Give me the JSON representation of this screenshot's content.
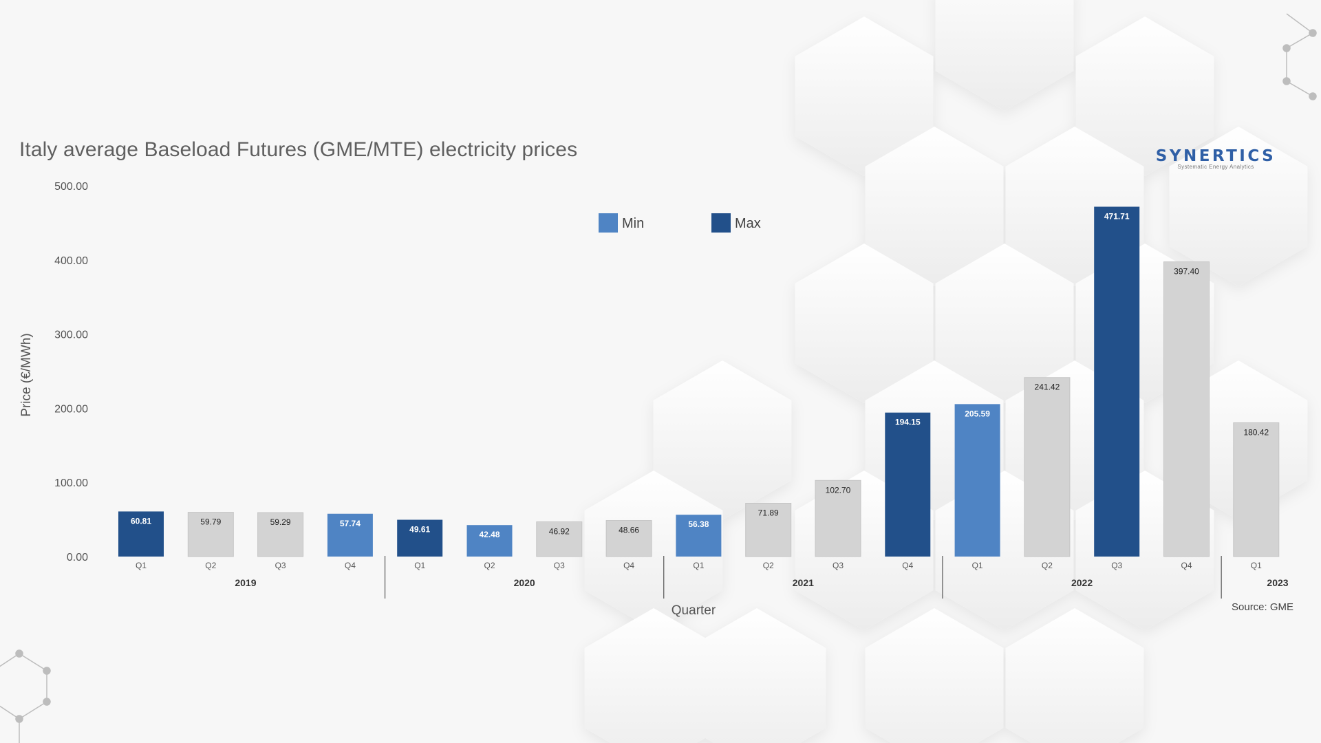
{
  "title": "Italy average Baseload Futures (GME/MTE) electricity prices",
  "brand": {
    "name": "SYNERTICS",
    "tagline": "Systematic Energy Analytics"
  },
  "source": "Source: GME",
  "colors": {
    "min": "#4f84c4",
    "max": "#22508a",
    "other": "#d3d3d3",
    "background": "#f7f7f7"
  },
  "chart_data": {
    "type": "bar",
    "ylabel": "Price (€/MWh)",
    "xlabel": "Quarter",
    "ylim": [
      0,
      500
    ],
    "yticks": [
      "0.00",
      "100.00",
      "200.00",
      "300.00",
      "400.00",
      "500.00"
    ],
    "legend": [
      {
        "name": "Min",
        "color": "#4f84c4"
      },
      {
        "name": "Max",
        "color": "#22508a"
      }
    ],
    "legend_position": "top-center",
    "grid": false,
    "years": [
      {
        "label": "2019",
        "quarters": 4
      },
      {
        "label": "2020",
        "quarters": 4
      },
      {
        "label": "2021",
        "quarters": 4
      },
      {
        "label": "2022",
        "quarters": 4
      },
      {
        "label": "2023",
        "quarters": 1
      }
    ],
    "bars": [
      {
        "year": "2019",
        "quarter": "Q1",
        "value": 60.81,
        "label": "60.81",
        "kind": "max"
      },
      {
        "year": "2019",
        "quarter": "Q2",
        "value": 59.79,
        "label": "59.79",
        "kind": "other"
      },
      {
        "year": "2019",
        "quarter": "Q3",
        "value": 59.29,
        "label": "59.29",
        "kind": "other"
      },
      {
        "year": "2019",
        "quarter": "Q4",
        "value": 57.74,
        "label": "57.74",
        "kind": "min"
      },
      {
        "year": "2020",
        "quarter": "Q1",
        "value": 49.61,
        "label": "49.61",
        "kind": "max"
      },
      {
        "year": "2020",
        "quarter": "Q2",
        "value": 42.48,
        "label": "42.48",
        "kind": "min"
      },
      {
        "year": "2020",
        "quarter": "Q3",
        "value": 46.92,
        "label": "46.92",
        "kind": "other"
      },
      {
        "year": "2020",
        "quarter": "Q4",
        "value": 48.66,
        "label": "48.66",
        "kind": "other"
      },
      {
        "year": "2021",
        "quarter": "Q1",
        "value": 56.38,
        "label": "56.38",
        "kind": "min"
      },
      {
        "year": "2021",
        "quarter": "Q2",
        "value": 71.89,
        "label": "71.89",
        "kind": "other"
      },
      {
        "year": "2021",
        "quarter": "Q3",
        "value": 102.7,
        "label": "102.70",
        "kind": "other"
      },
      {
        "year": "2021",
        "quarter": "Q4",
        "value": 194.15,
        "label": "194.15",
        "kind": "max"
      },
      {
        "year": "2022",
        "quarter": "Q1",
        "value": 205.59,
        "label": "205.59",
        "kind": "min"
      },
      {
        "year": "2022",
        "quarter": "Q2",
        "value": 241.42,
        "label": "241.42",
        "kind": "other"
      },
      {
        "year": "2022",
        "quarter": "Q3",
        "value": 471.71,
        "label": "471.71",
        "kind": "max"
      },
      {
        "year": "2022",
        "quarter": "Q4",
        "value": 397.4,
        "label": "397.40",
        "kind": "other"
      },
      {
        "year": "2023",
        "quarter": "Q1",
        "value": 180.42,
        "label": "180.42",
        "kind": "other"
      }
    ]
  }
}
